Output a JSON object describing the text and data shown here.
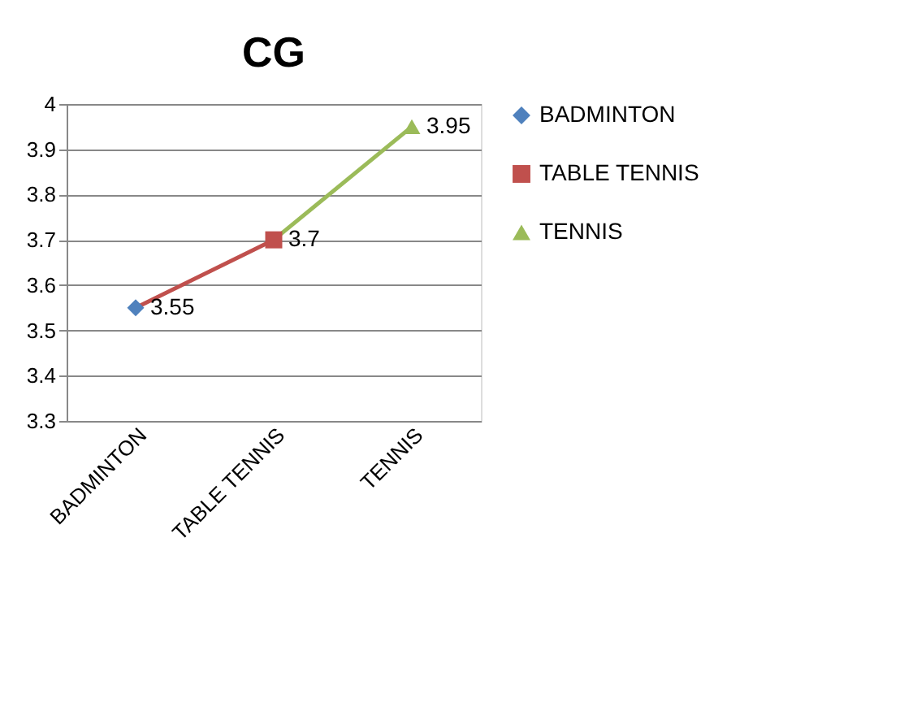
{
  "chart_data": {
    "type": "line",
    "title": "CG",
    "categories": [
      "BADMINTON",
      "TABLE TENNIS",
      "TENNIS"
    ],
    "series": [
      {
        "name": "BADMINTON",
        "color": "#4f81bd",
        "marker": "diamond",
        "values": [
          3.55,
          null,
          null
        ]
      },
      {
        "name": "TABLE TENNIS",
        "color": "#c0504d",
        "marker": "square",
        "values": [
          null,
          3.7,
          null
        ]
      },
      {
        "name": "TENNIS",
        "color": "#9bbb59",
        "marker": "triangle",
        "values": [
          null,
          null,
          3.95
        ]
      }
    ],
    "ylim": [
      3.3,
      4
    ],
    "yticks": [
      3.3,
      3.4,
      3.5,
      3.6,
      3.7,
      3.8,
      3.9,
      4
    ],
    "grid": "y",
    "legend": "right",
    "data_labels": true
  }
}
